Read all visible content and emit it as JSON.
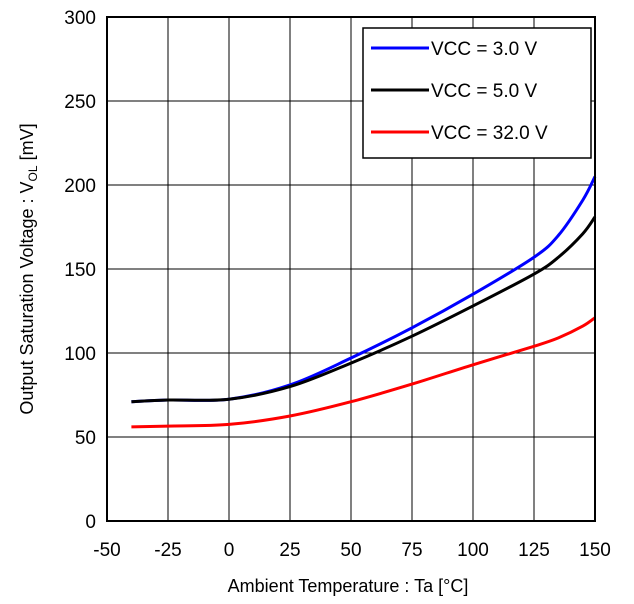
{
  "chart_data": {
    "type": "line",
    "xlabel": "Ambient Temperature : Ta [°C]",
    "ylabel": {
      "prefix": "Output Saturation Voltage : V",
      "subscript": "OL",
      "suffix": " [mV]"
    },
    "xlim": [
      -50,
      150
    ],
    "ylim": [
      0,
      300
    ],
    "xticks": [
      "-50",
      "-25",
      "0",
      "25",
      "50",
      "75",
      "100",
      "125",
      "150"
    ],
    "yticks": [
      "0",
      "50",
      "100",
      "150",
      "200",
      "250",
      "300"
    ],
    "grid": true,
    "legend_position": "top-right",
    "series": [
      {
        "name": "VCC = 3.0 V",
        "color": "#0000ff",
        "x": [
          -40,
          -25,
          0,
          25,
          50,
          75,
          100,
          125,
          135,
          145,
          150
        ],
        "y": [
          71,
          72,
          72.5,
          81,
          97,
          115,
          135,
          157,
          170,
          191,
          205
        ]
      },
      {
        "name": "VCC = 5.0 V",
        "color": "#000000",
        "x": [
          -40,
          -25,
          0,
          25,
          50,
          75,
          100,
          125,
          135,
          145,
          150
        ],
        "y": [
          71,
          72,
          72.5,
          80,
          94,
          110,
          128,
          147,
          157,
          171,
          181
        ]
      },
      {
        "name": "VCC = 32.0 V",
        "color": "#ff0000",
        "x": [
          -40,
          -25,
          0,
          25,
          50,
          75,
          100,
          125,
          135,
          145,
          150
        ],
        "y": [
          56,
          56.5,
          57.5,
          62.5,
          71,
          81.5,
          93,
          104,
          109,
          116,
          121
        ]
      }
    ]
  }
}
